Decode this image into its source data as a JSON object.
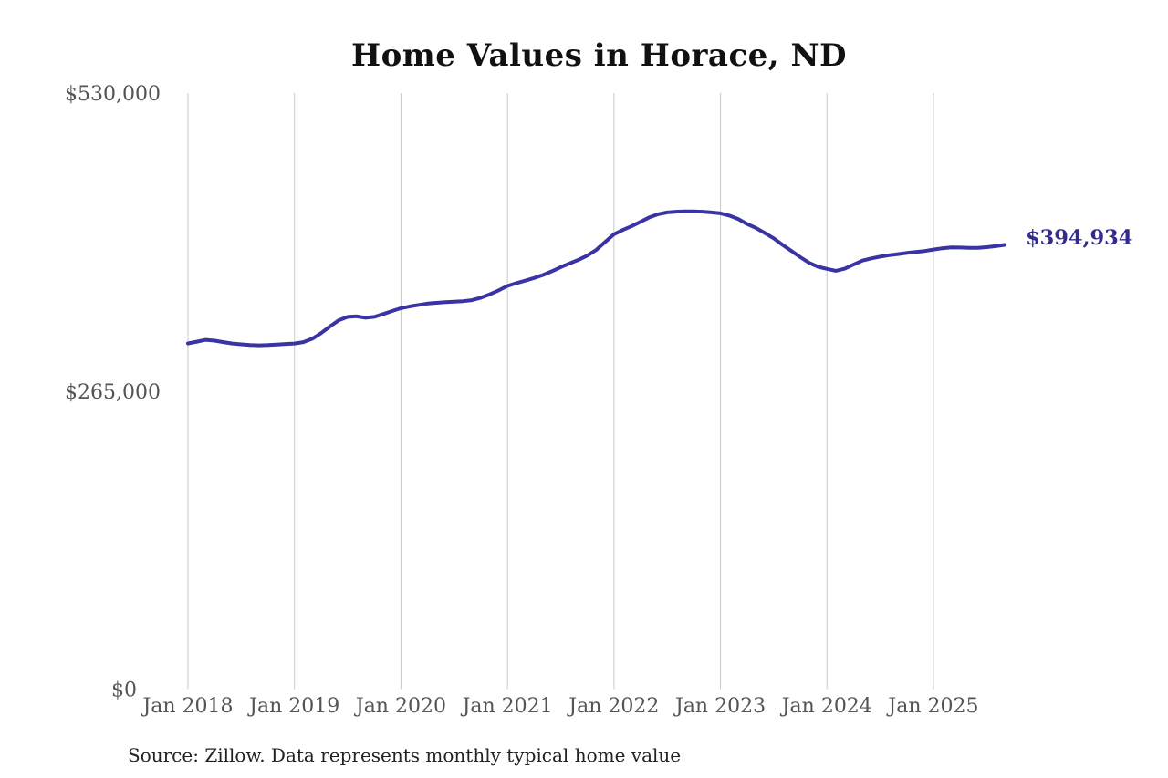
{
  "chart_data": {
    "type": "line",
    "title": "Home Values in Horace, ND",
    "source_note": "Source: Zillow. Data represents monthly typical home value",
    "end_label": "$394,934",
    "ylim": [
      0,
      530000
    ],
    "grid": "vertical-only",
    "legend": "none",
    "y_ticks": [
      {
        "label": "$530,000",
        "value": 530000,
        "dx": 0
      },
      {
        "label": "$265,000",
        "value": 265000,
        "dx": 0
      },
      {
        "label": "$0",
        "value": 0,
        "dx": -26
      }
    ],
    "x_ticks": [
      {
        "label": "Jan 2018",
        "month_index": 0
      },
      {
        "label": "Jan 2019",
        "month_index": 12
      },
      {
        "label": "Jan 2020",
        "month_index": 24
      },
      {
        "label": "Jan 2021",
        "month_index": 36
      },
      {
        "label": "Jan 2022",
        "month_index": 48
      },
      {
        "label": "Jan 2023",
        "month_index": 60
      },
      {
        "label": "Jan 2024",
        "month_index": 72
      },
      {
        "label": "Jan 2025",
        "month_index": 84
      }
    ],
    "series": [
      {
        "name": "Monthly typical home value",
        "start": "Jan 2018",
        "end": "Sep 2025",
        "frequency": "monthly",
        "final_value": 394934,
        "values": [
          307400,
          308900,
          310500,
          309800,
          308500,
          307300,
          306600,
          306000,
          305700,
          305900,
          306400,
          306900,
          307300,
          308500,
          311500,
          316500,
          322500,
          328000,
          331000,
          331500,
          330200,
          331000,
          333500,
          336200,
          338700,
          340300,
          341600,
          342800,
          343500,
          344000,
          344400,
          344900,
          345800,
          348000,
          351000,
          354500,
          358500,
          361000,
          363200,
          365500,
          368200,
          371500,
          375200,
          378500,
          381700,
          385500,
          390500,
          397500,
          404400,
          408300,
          411700,
          415500,
          419500,
          422300,
          423800,
          424500,
          424700,
          424700,
          424500,
          423800,
          423000,
          421000,
          418000,
          413500,
          410000,
          405500,
          400800,
          395000,
          389500,
          384000,
          379000,
          375500,
          373600,
          371900,
          373800,
          377500,
          381000,
          383000,
          384500,
          385800,
          386800,
          387800,
          388600,
          389500,
          390800,
          392000,
          392800,
          392600,
          392300,
          392300,
          392900,
          393800,
          394934
        ]
      }
    ],
    "colors": {
      "line": "#3a33a3",
      "end_label": "#322b90",
      "grid": "#c9c9c9",
      "axis_text": "#545454",
      "title_text": "#111111",
      "source_text": "#222222"
    }
  }
}
